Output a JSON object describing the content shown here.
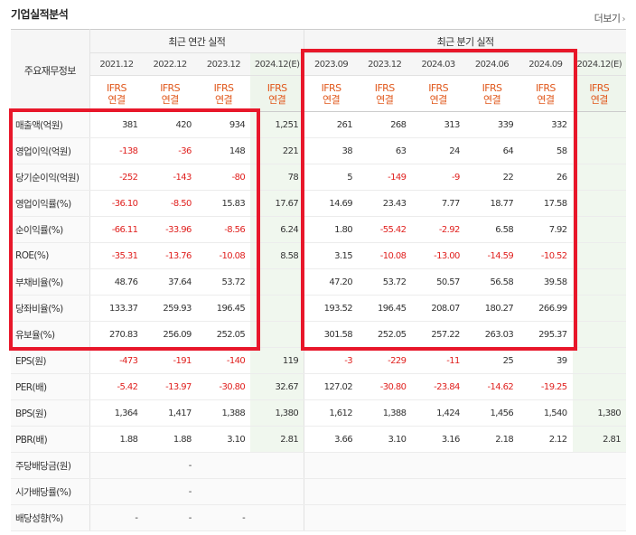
{
  "title": "기업실적분석",
  "more_label": "더보기",
  "colors": {
    "negative": "#e0211f",
    "ifrs": "#e0581c",
    "highlight": "#e8172a",
    "estimate_bg": "#eef5ec"
  },
  "header": {
    "row_label": "주요재무정보",
    "annual_group": "최근 연간 실적",
    "quarter_group": "최근 분기 실적",
    "annual_periods": [
      "2021.12",
      "2022.12",
      "2023.12",
      "2024.12(E)"
    ],
    "quarter_periods": [
      "2023.09",
      "2023.12",
      "2024.03",
      "2024.06",
      "2024.09",
      "2024.12(E)"
    ],
    "ifrs_line1": "IFRS",
    "ifrs_line2": "연결"
  },
  "rows": [
    {
      "label": "매출액(억원)",
      "values": [
        "381",
        "420",
        "934",
        "1,251",
        "261",
        "268",
        "313",
        "339",
        "332",
        ""
      ]
    },
    {
      "label": "영업이익(억원)",
      "values": [
        "-138",
        "-36",
        "148",
        "221",
        "38",
        "63",
        "24",
        "64",
        "58",
        ""
      ]
    },
    {
      "label": "당기순이익(억원)",
      "values": [
        "-252",
        "-143",
        "-80",
        "78",
        "5",
        "-149",
        "-9",
        "22",
        "26",
        ""
      ]
    },
    {
      "label": "영업이익률(%)",
      "values": [
        "-36.10",
        "-8.50",
        "15.83",
        "17.67",
        "14.69",
        "23.43",
        "7.77",
        "18.77",
        "17.58",
        ""
      ]
    },
    {
      "label": "순이익률(%)",
      "values": [
        "-66.11",
        "-33.96",
        "-8.56",
        "6.24",
        "1.80",
        "-55.42",
        "-2.92",
        "6.58",
        "7.92",
        ""
      ]
    },
    {
      "label": "ROE(%)",
      "values": [
        "-35.31",
        "-13.76",
        "-10.08",
        "8.58",
        "3.15",
        "-10.08",
        "-13.00",
        "-14.59",
        "-10.52",
        ""
      ]
    },
    {
      "label": "부채비율(%)",
      "values": [
        "48.76",
        "37.64",
        "53.72",
        "",
        "47.20",
        "53.72",
        "50.57",
        "56.58",
        "39.58",
        ""
      ]
    },
    {
      "label": "당좌비율(%)",
      "values": [
        "133.37",
        "259.93",
        "196.45",
        "",
        "193.52",
        "196.45",
        "208.07",
        "180.27",
        "266.99",
        ""
      ]
    },
    {
      "label": "유보율(%)",
      "values": [
        "270.83",
        "256.09",
        "252.05",
        "",
        "301.58",
        "252.05",
        "257.22",
        "263.03",
        "295.37",
        ""
      ]
    },
    {
      "label": "EPS(원)",
      "values": [
        "-473",
        "-191",
        "-140",
        "119",
        "-3",
        "-229",
        "-11",
        "25",
        "39",
        ""
      ]
    },
    {
      "label": "PER(배)",
      "values": [
        "-5.42",
        "-13.97",
        "-30.80",
        "32.67",
        "127.02",
        "-30.80",
        "-23.84",
        "-14.62",
        "-19.25",
        ""
      ]
    },
    {
      "label": "BPS(원)",
      "values": [
        "1,364",
        "1,417",
        "1,388",
        "1,380",
        "1,612",
        "1,388",
        "1,424",
        "1,456",
        "1,540",
        "1,380"
      ]
    },
    {
      "label": "PBR(배)",
      "values": [
        "1.88",
        "1.88",
        "3.10",
        "2.81",
        "3.66",
        "3.10",
        "3.16",
        "2.18",
        "2.12",
        "2.81"
      ]
    },
    {
      "label": "주당배당금(원)",
      "values": [
        "",
        "-",
        "",
        "",
        "",
        "",
        "",
        "",
        "",
        ""
      ]
    },
    {
      "label": "시가배당률(%)",
      "values": [
        "",
        "-",
        "",
        "",
        "",
        "",
        "",
        "",
        "",
        ""
      ]
    },
    {
      "label": "배당성향(%)",
      "values": [
        "-",
        "-",
        "-",
        "",
        "",
        "",
        "",
        "",
        "",
        ""
      ]
    }
  ]
}
